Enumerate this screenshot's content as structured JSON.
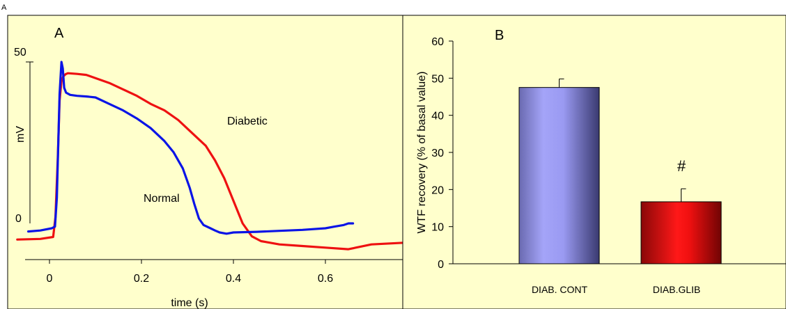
{
  "figure_label": "A",
  "colors": {
    "panel_bg": "#ffffcc",
    "normal": "#0a14e6",
    "diabetic": "#ee1111",
    "bar_control": "#9696f0",
    "bar_glib": "#e01010"
  },
  "chart_data": [
    {
      "type": "line",
      "panel_label": "A",
      "xlabel": "time (s)",
      "ylabel": "mV",
      "xlim": [
        -0.05,
        0.77
      ],
      "x_ticks": [
        "0",
        "0.2",
        "0.4",
        "0.6"
      ],
      "x_tick_values": [
        0,
        0.2,
        0.4,
        0.6
      ],
      "y_scale_labels": [
        "50",
        "0"
      ],
      "y_scale_values": [
        50,
        0
      ],
      "ylim": [
        -12,
        55
      ],
      "series": [
        {
          "name": "Normal",
          "color": "#0a14e6",
          "x": [
            -0.046,
            -0.02,
            0.005,
            0.012,
            0.016,
            0.022,
            0.026,
            0.029,
            0.032,
            0.036,
            0.045,
            0.06,
            0.08,
            0.1,
            0.13,
            0.16,
            0.19,
            0.22,
            0.25,
            0.27,
            0.29,
            0.305,
            0.315,
            0.325,
            0.335,
            0.35,
            0.36,
            0.37,
            0.385,
            0.4,
            0.45,
            0.5,
            0.55,
            0.6,
            0.62,
            0.64,
            0.65,
            0.66
          ],
          "y": [
            -2.5,
            -2.2,
            -1.5,
            -1.0,
            8,
            40,
            50,
            48,
            42,
            40.5,
            39.8,
            39.5,
            39.3,
            39,
            37,
            35,
            32.5,
            29.5,
            25.5,
            22,
            17,
            11,
            6,
            1.5,
            -0.5,
            -1.5,
            -2.2,
            -2.8,
            -3.2,
            -2.8,
            -2.6,
            -2.3,
            -2.0,
            -1.5,
            -1.0,
            -0.5,
            0,
            0
          ]
        },
        {
          "name": "Diabetic",
          "color": "#ee1111",
          "x": [
            -0.07,
            -0.02,
            0.008,
            0.013,
            0.018,
            0.022,
            0.026,
            0.03,
            0.035,
            0.04,
            0.06,
            0.08,
            0.1,
            0.13,
            0.16,
            0.19,
            0.22,
            0.25,
            0.28,
            0.31,
            0.34,
            0.36,
            0.38,
            0.4,
            0.42,
            0.44,
            0.46,
            0.48,
            0.5,
            0.55,
            0.6,
            0.65,
            0.7,
            0.77
          ],
          "y": [
            -5,
            -4.8,
            -4.2,
            2,
            20,
            38,
            44,
            45.5,
            46.2,
            46.5,
            46.3,
            46,
            45,
            43.5,
            41.5,
            39.5,
            37,
            35,
            32,
            28,
            24,
            19.5,
            14,
            7,
            0,
            -4,
            -5.5,
            -6,
            -6.5,
            -7,
            -7.5,
            -8,
            -6.5,
            -6
          ]
        }
      ],
      "annotations": [
        "Diabetic",
        "Normal"
      ]
    },
    {
      "type": "bar",
      "panel_label": "B",
      "categories": [
        "DIAB. CONT",
        "DIAB.GLIB"
      ],
      "values": [
        47.5,
        16.7
      ],
      "errors": [
        2.3,
        3.5
      ],
      "ylabel": "WTF recovery (% of basal value)",
      "ylim": [
        0,
        60
      ],
      "y_ticks": [
        "0",
        "10",
        "20",
        "30",
        "40",
        "50",
        "60"
      ],
      "y_tick_values": [
        0,
        10,
        20,
        30,
        40,
        50,
        60
      ],
      "significance_mark": "#"
    }
  ]
}
